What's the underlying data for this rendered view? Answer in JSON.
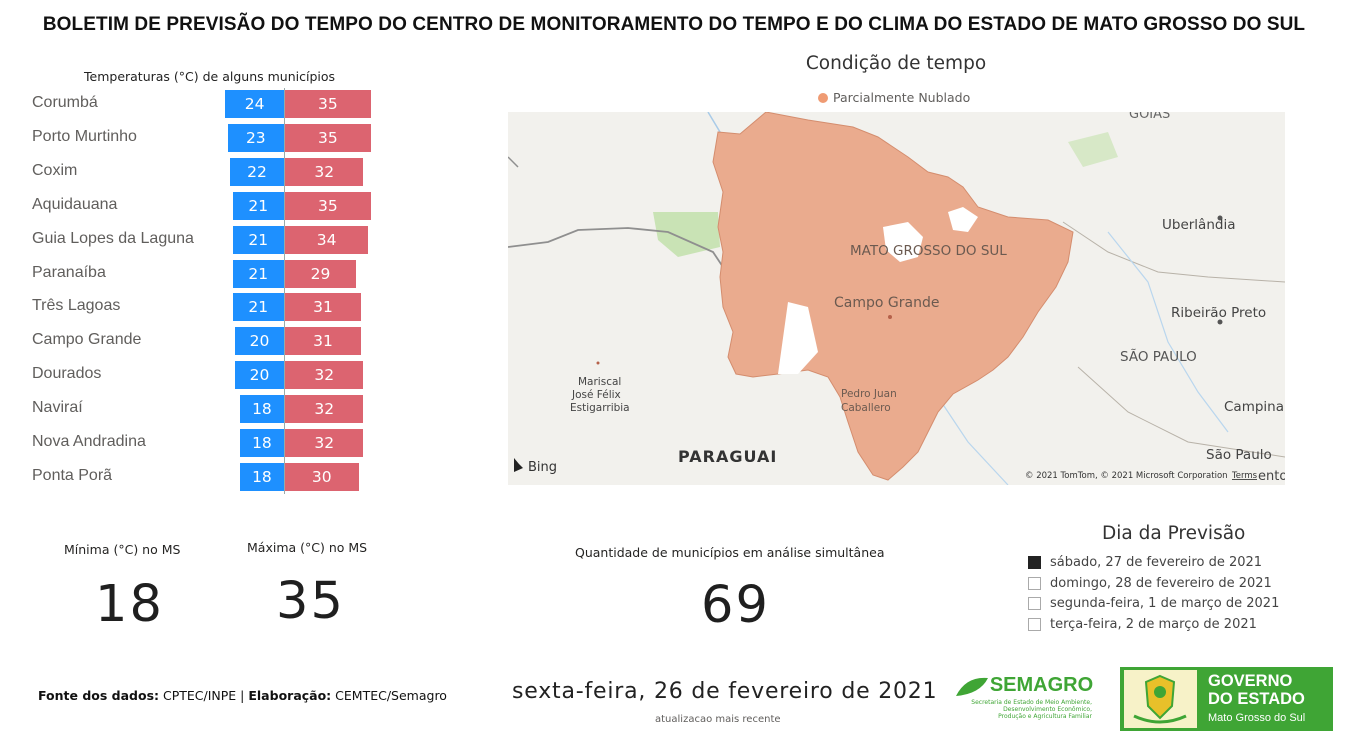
{
  "header": {
    "title": "BOLETIM DE PREVISÃO DO TEMPO DO CENTRO DE MONITORAMENTO DO TEMPO E DO CLIMA DO ESTADO DE MATO GROSSO DO SUL"
  },
  "temps": {
    "title": "Temperaturas (°C) de alguns municípios",
    "rows": [
      {
        "city": "Corumbá",
        "min": 24,
        "max": 35
      },
      {
        "city": "Porto Murtinho",
        "min": 23,
        "max": 35
      },
      {
        "city": "Coxim",
        "min": 22,
        "max": 32
      },
      {
        "city": "Aquidauana",
        "min": 21,
        "max": 35
      },
      {
        "city": "Guia Lopes da Laguna",
        "min": 21,
        "max": 34
      },
      {
        "city": "Paranaíba",
        "min": 21,
        "max": 29
      },
      {
        "city": "Três Lagoas",
        "min": 21,
        "max": 31
      },
      {
        "city": "Campo Grande",
        "min": 20,
        "max": 31
      },
      {
        "city": "Dourados",
        "min": 20,
        "max": 32
      },
      {
        "city": "Naviraí",
        "min": 18,
        "max": 32
      },
      {
        "city": "Nova Andradina",
        "min": 18,
        "max": 32
      },
      {
        "city": "Ponta Porã",
        "min": 18,
        "max": 30
      }
    ],
    "colors": {
      "min": "#1e90ff",
      "max": "#dc6470"
    }
  },
  "map": {
    "title": "Condição de tempo",
    "legend": "Parcialmente Nublado",
    "legend_color": "#ef9b73",
    "labels": {
      "state": "MATO GROSSO DO SUL",
      "capital": "Campo Grande",
      "uberlandia": "Uberlândia",
      "ribeirao": "Ribeirão Preto",
      "sao_paulo_state": "SÃO PAULO",
      "campinas": "Campina",
      "sao_paulo": "São Paulo",
      "paraguai": "PARAGUAI",
      "pedro1": "Pedro Juan",
      "pedro2": "Caballero",
      "mariscal1": "Mariscal",
      "mariscal2": "José Félix",
      "mariscal3": "Estigarribia",
      "goias": "GOIÁS",
      "bing": "Bing",
      "copyright": "© 2021 TomTom, © 2021 Microsoft Corporation",
      "terms": "Terms",
      "ento": "ento"
    }
  },
  "kpis": {
    "min_label": "Mínima (°C) no MS",
    "min_value": "18",
    "max_label": "Máxima (°C) no MS",
    "max_value": "35",
    "count_label": "Quantidade de municípios em análise simultânea",
    "count_value": "69"
  },
  "slicer": {
    "title": "Dia da Previsão",
    "items": [
      {
        "label": "sábado, 27 de fevereiro de 2021",
        "checked": true
      },
      {
        "label": "domingo, 28 de fevereiro de 2021",
        "checked": false
      },
      {
        "label": "segunda-feira, 1 de março de 2021",
        "checked": false
      },
      {
        "label": "terça-feira, 2 de março de 2021",
        "checked": false
      }
    ]
  },
  "footer": {
    "source_label": "Fonte dos dados:",
    "source_value": " CPTEC/INPE | ",
    "elab_label": "Elaboração:",
    "elab_value": " CEMTEC/Semagro",
    "date": "sexta-feira, 26 de fevereiro de 2021",
    "date_caption": "atualizacao mais recente",
    "semagro_name": "SEMAGRO",
    "semagro_desc1": "Secretaria de Estado de Meio Ambiente,",
    "semagro_desc2": "Desenvolvimento Econômico,",
    "semagro_desc3": "Produção e Agricultura Familiar",
    "gov_line1": "GOVERNO",
    "gov_line2": "DO ESTADO",
    "gov_line3": "Mato Grosso do Sul"
  }
}
